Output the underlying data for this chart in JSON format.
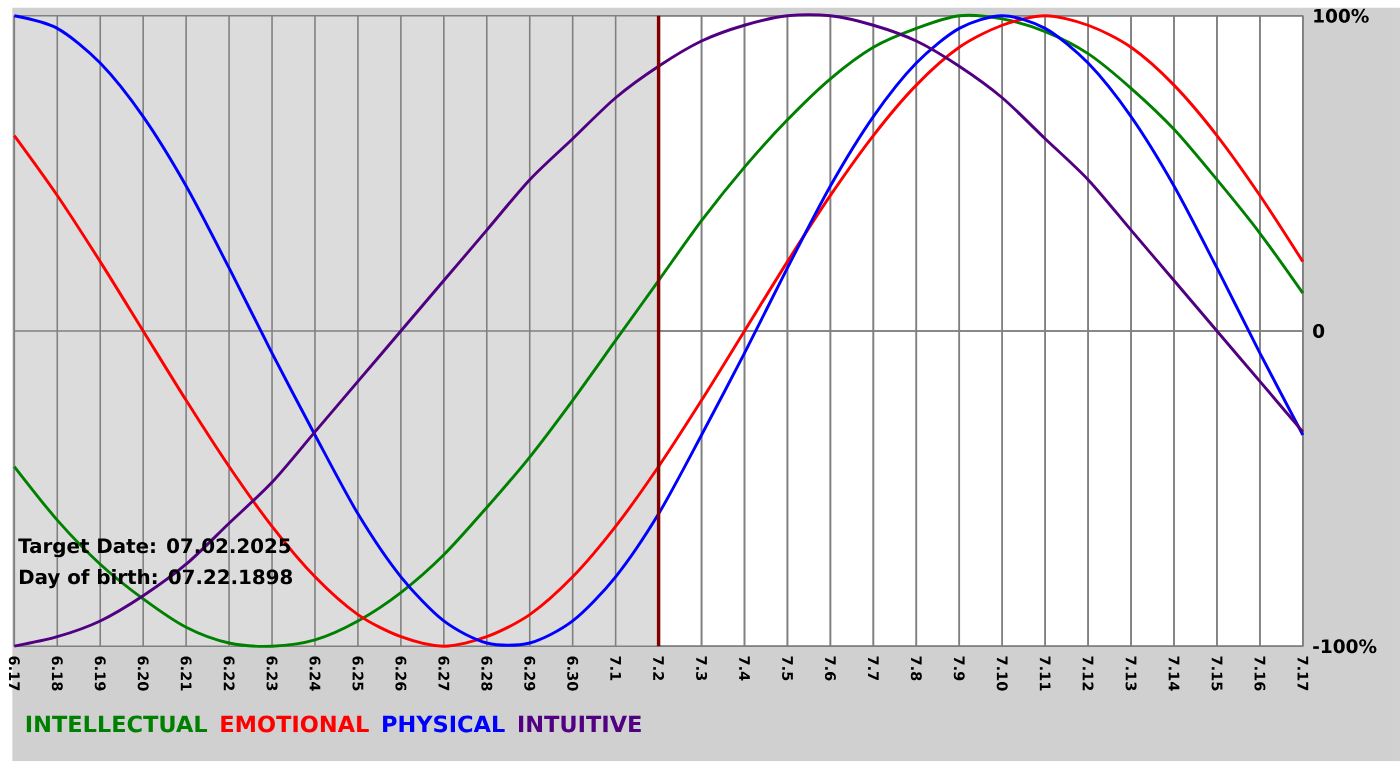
{
  "chart_data": {
    "type": "line",
    "categories": [
      "6.17",
      "6.18",
      "6.19",
      "6.20",
      "6.21",
      "6.22",
      "6.23",
      "6.24",
      "6.25",
      "6.26",
      "6.27",
      "6.28",
      "6.29",
      "6.30",
      "7.1",
      "7.2",
      "7.3",
      "7.4",
      "7.5",
      "7.6",
      "7.7",
      "7.8",
      "7.9",
      "7.10",
      "7.11",
      "7.12",
      "7.13",
      "7.14",
      "7.15",
      "7.16",
      "7.17"
    ],
    "series": [
      {
        "name": "INTELLECTUAL",
        "color": "#008000",
        "values": [
          -43,
          -60,
          -74,
          -85,
          -94,
          -99,
          -100,
          -98,
          -92,
          -83,
          -71,
          -56,
          -40,
          -22,
          -3,
          16,
          35,
          52,
          67,
          80,
          90,
          96,
          100,
          99,
          95,
          88,
          77,
          64,
          48,
          31,
          12
        ]
      },
      {
        "name": "EMOTIONAL",
        "color": "#ff0000",
        "values": [
          62,
          43,
          22,
          0,
          -22,
          -43,
          -62,
          -78,
          -90,
          -97,
          -100,
          -97,
          -90,
          -78,
          -62,
          -43,
          -22,
          0,
          22,
          43,
          62,
          78,
          90,
          97,
          100,
          97,
          90,
          78,
          62,
          43,
          22
        ]
      },
      {
        "name": "PHYSICAL",
        "color": "#0000ff",
        "values": [
          100,
          96,
          85,
          68,
          46,
          20,
          -7,
          -33,
          -58,
          -78,
          -92,
          -99,
          -99,
          -92,
          -78,
          -58,
          -33,
          -7,
          20,
          46,
          68,
          85,
          96,
          100,
          96,
          85,
          68,
          46,
          20,
          -7,
          -33
        ]
      },
      {
        "name": "INTUITIVE",
        "color": "#500080",
        "values": [
          -100,
          -97,
          -92,
          -84,
          -74,
          -61,
          -48,
          -32,
          -16,
          0,
          16,
          32,
          48,
          61,
          74,
          84,
          92,
          97,
          100,
          100,
          97,
          92,
          84,
          74,
          61,
          48,
          32,
          16,
          0,
          -16,
          -32
        ]
      }
    ],
    "ylim": [
      -100,
      100
    ],
    "yticks": [
      {
        "value": -100,
        "label": "-100%"
      },
      0,
      {
        "value": 100,
        "label": "100%"
      }
    ],
    "grid": true,
    "legend": "bottom",
    "ref_lines": [
      {
        "axis": "x",
        "value": "7.2",
        "color": "#800000"
      }
    ],
    "bands": [
      {
        "axis": "x",
        "from": "6.17",
        "to": "7.2",
        "color": "#dcdcdc"
      }
    ],
    "annotations": [
      "Target Date: 07.02.2025",
      "Day of birth: 07.22.1898"
    ]
  }
}
